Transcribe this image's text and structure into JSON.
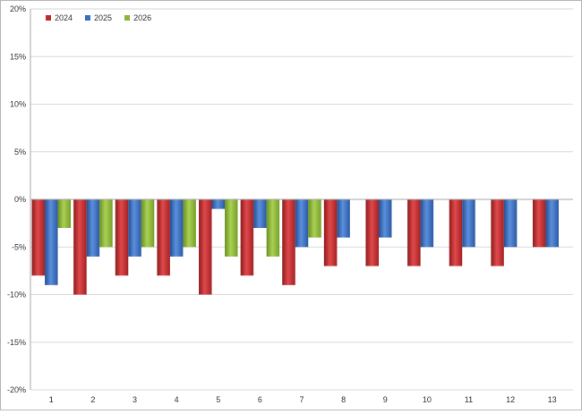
{
  "chart_data": {
    "type": "bar",
    "title": "",
    "xlabel": "",
    "ylabel": "",
    "categories": [
      "1",
      "2",
      "3",
      "4",
      "5",
      "6",
      "7",
      "8",
      "9",
      "10",
      "11",
      "12",
      "13"
    ],
    "ylim": [
      -20,
      20
    ],
    "yticks": [
      20,
      15,
      10,
      5,
      0,
      -5,
      -10,
      -15,
      -20
    ],
    "ytick_labels": [
      "20%",
      "15%",
      "10%",
      "5%",
      "0%",
      "-5%",
      "-10%",
      "-15%",
      "-20%"
    ],
    "grid": true,
    "legend_position": "top-left",
    "series": [
      {
        "name": "2024",
        "color": "#c0292b",
        "values": [
          -8,
          -10,
          -8,
          -8,
          -10,
          -8,
          -9,
          -7,
          -7,
          -7,
          -7,
          -7,
          -5
        ]
      },
      {
        "name": "2025",
        "color": "#3a6fbd",
        "values": [
          -9,
          -6,
          -6,
          -6,
          -1,
          -3,
          -5,
          -4,
          -4,
          -5,
          -5,
          -5,
          -5
        ]
      },
      {
        "name": "2026",
        "color": "#8cb53a",
        "values": [
          -3,
          -5,
          -5,
          -5,
          -6,
          -6,
          -4,
          null,
          null,
          null,
          null,
          null,
          null
        ]
      }
    ]
  }
}
